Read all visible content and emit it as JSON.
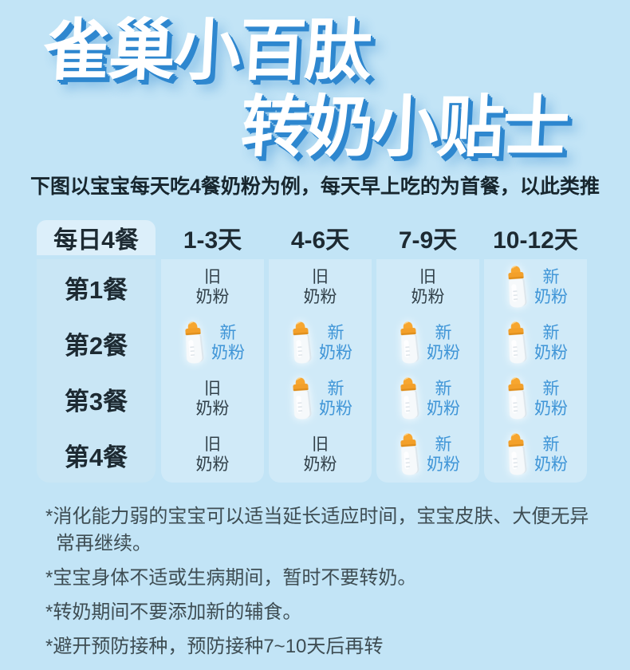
{
  "title": {
    "line1": "雀巢小百肽",
    "line2": "转奶小贴士"
  },
  "subtitle": "下图以宝宝每天吃4餐奶粉为例，每天早上吃的为首餐，以此类推",
  "table": {
    "corner_header": "每日4餐",
    "column_headers": [
      "1-3天",
      "4-6天",
      "7-9天",
      "10-12天"
    ],
    "row_headers": [
      "第1餐",
      "第2餐",
      "第3餐",
      "第4餐"
    ],
    "old_formula": {
      "line1": "旧",
      "line2": "奶粉"
    },
    "new_formula": {
      "line1": "新",
      "line2": "奶粉"
    },
    "cells": [
      [
        "old",
        "old",
        "old",
        "new"
      ],
      [
        "new",
        "new",
        "new",
        "new"
      ],
      [
        "old",
        "new",
        "new",
        "new"
      ],
      [
        "old",
        "old",
        "new",
        "new"
      ]
    ]
  },
  "notes": [
    "*消化能力弱的宝宝可以适当延长适应时间，宝宝皮肤、大便无异常再继续。",
    "*宝宝身体不适或生病期间，暂时不要转奶。",
    "*转奶期间不要添加新的辅食。",
    "*避开预防接种，预防接种7~10天后再转"
  ],
  "icons": {
    "bottle": "baby-bottle-icon"
  },
  "colors": {
    "page_bg": "#c2e4f6",
    "title_shadow_blue": "#2e87cf",
    "header_panel_bg": "#dceffa",
    "label_column_bg": "#c9e6f5",
    "data_column_bg": "#d0eaf8",
    "new_formula_blue": "#3f95d7",
    "dark_text": "#1d2a32",
    "note_text": "#3e4d53",
    "bottle_orange": "#f5a42e"
  }
}
